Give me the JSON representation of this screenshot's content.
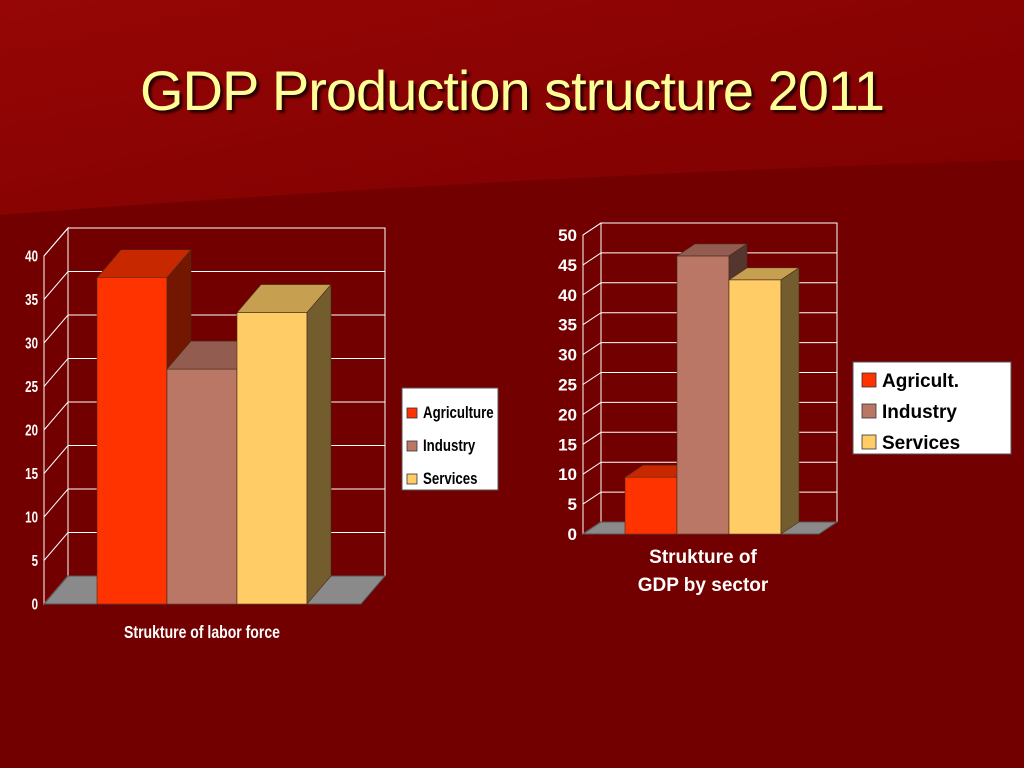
{
  "slide": {
    "title": "GDP Production structure 2011",
    "colors": {
      "background": "#7a0000",
      "title": "#ffff99"
    }
  },
  "chart_data": [
    {
      "type": "bar",
      "style": "3d-clustered-column",
      "categories": [
        "Strukture of labor force"
      ],
      "series": [
        {
          "name": "Agriculture",
          "values": [
            37.5
          ],
          "color": "#ff3300"
        },
        {
          "name": "Industry",
          "values": [
            27
          ],
          "color": "#bb7766"
        },
        {
          "name": "Services",
          "values": [
            33.5
          ],
          "color": "#ffcc66"
        }
      ],
      "xlabel": "Strukture of labor force",
      "ylabel": "",
      "ylim": [
        0,
        40
      ],
      "yticks": [
        0,
        5,
        10,
        15,
        20,
        25,
        30,
        35,
        40
      ],
      "grid": true,
      "legend": "right"
    },
    {
      "type": "bar",
      "style": "3d-clustered-column",
      "categories": [
        "Strukture of GDP by sector"
      ],
      "series": [
        {
          "name": "Agricult.",
          "values": [
            9.5
          ],
          "color": "#ff3300"
        },
        {
          "name": "Industry",
          "values": [
            46.5
          ],
          "color": "#bb7766"
        },
        {
          "name": "Services",
          "values": [
            42.5
          ],
          "color": "#ffcc66"
        }
      ],
      "xlabel_lines": [
        "Strukture of",
        "GDP by sector"
      ],
      "ylabel": "",
      "ylim": [
        0,
        50
      ],
      "yticks": [
        0,
        5,
        10,
        15,
        20,
        25,
        30,
        35,
        40,
        45,
        50
      ],
      "grid": true,
      "legend": "right"
    }
  ]
}
